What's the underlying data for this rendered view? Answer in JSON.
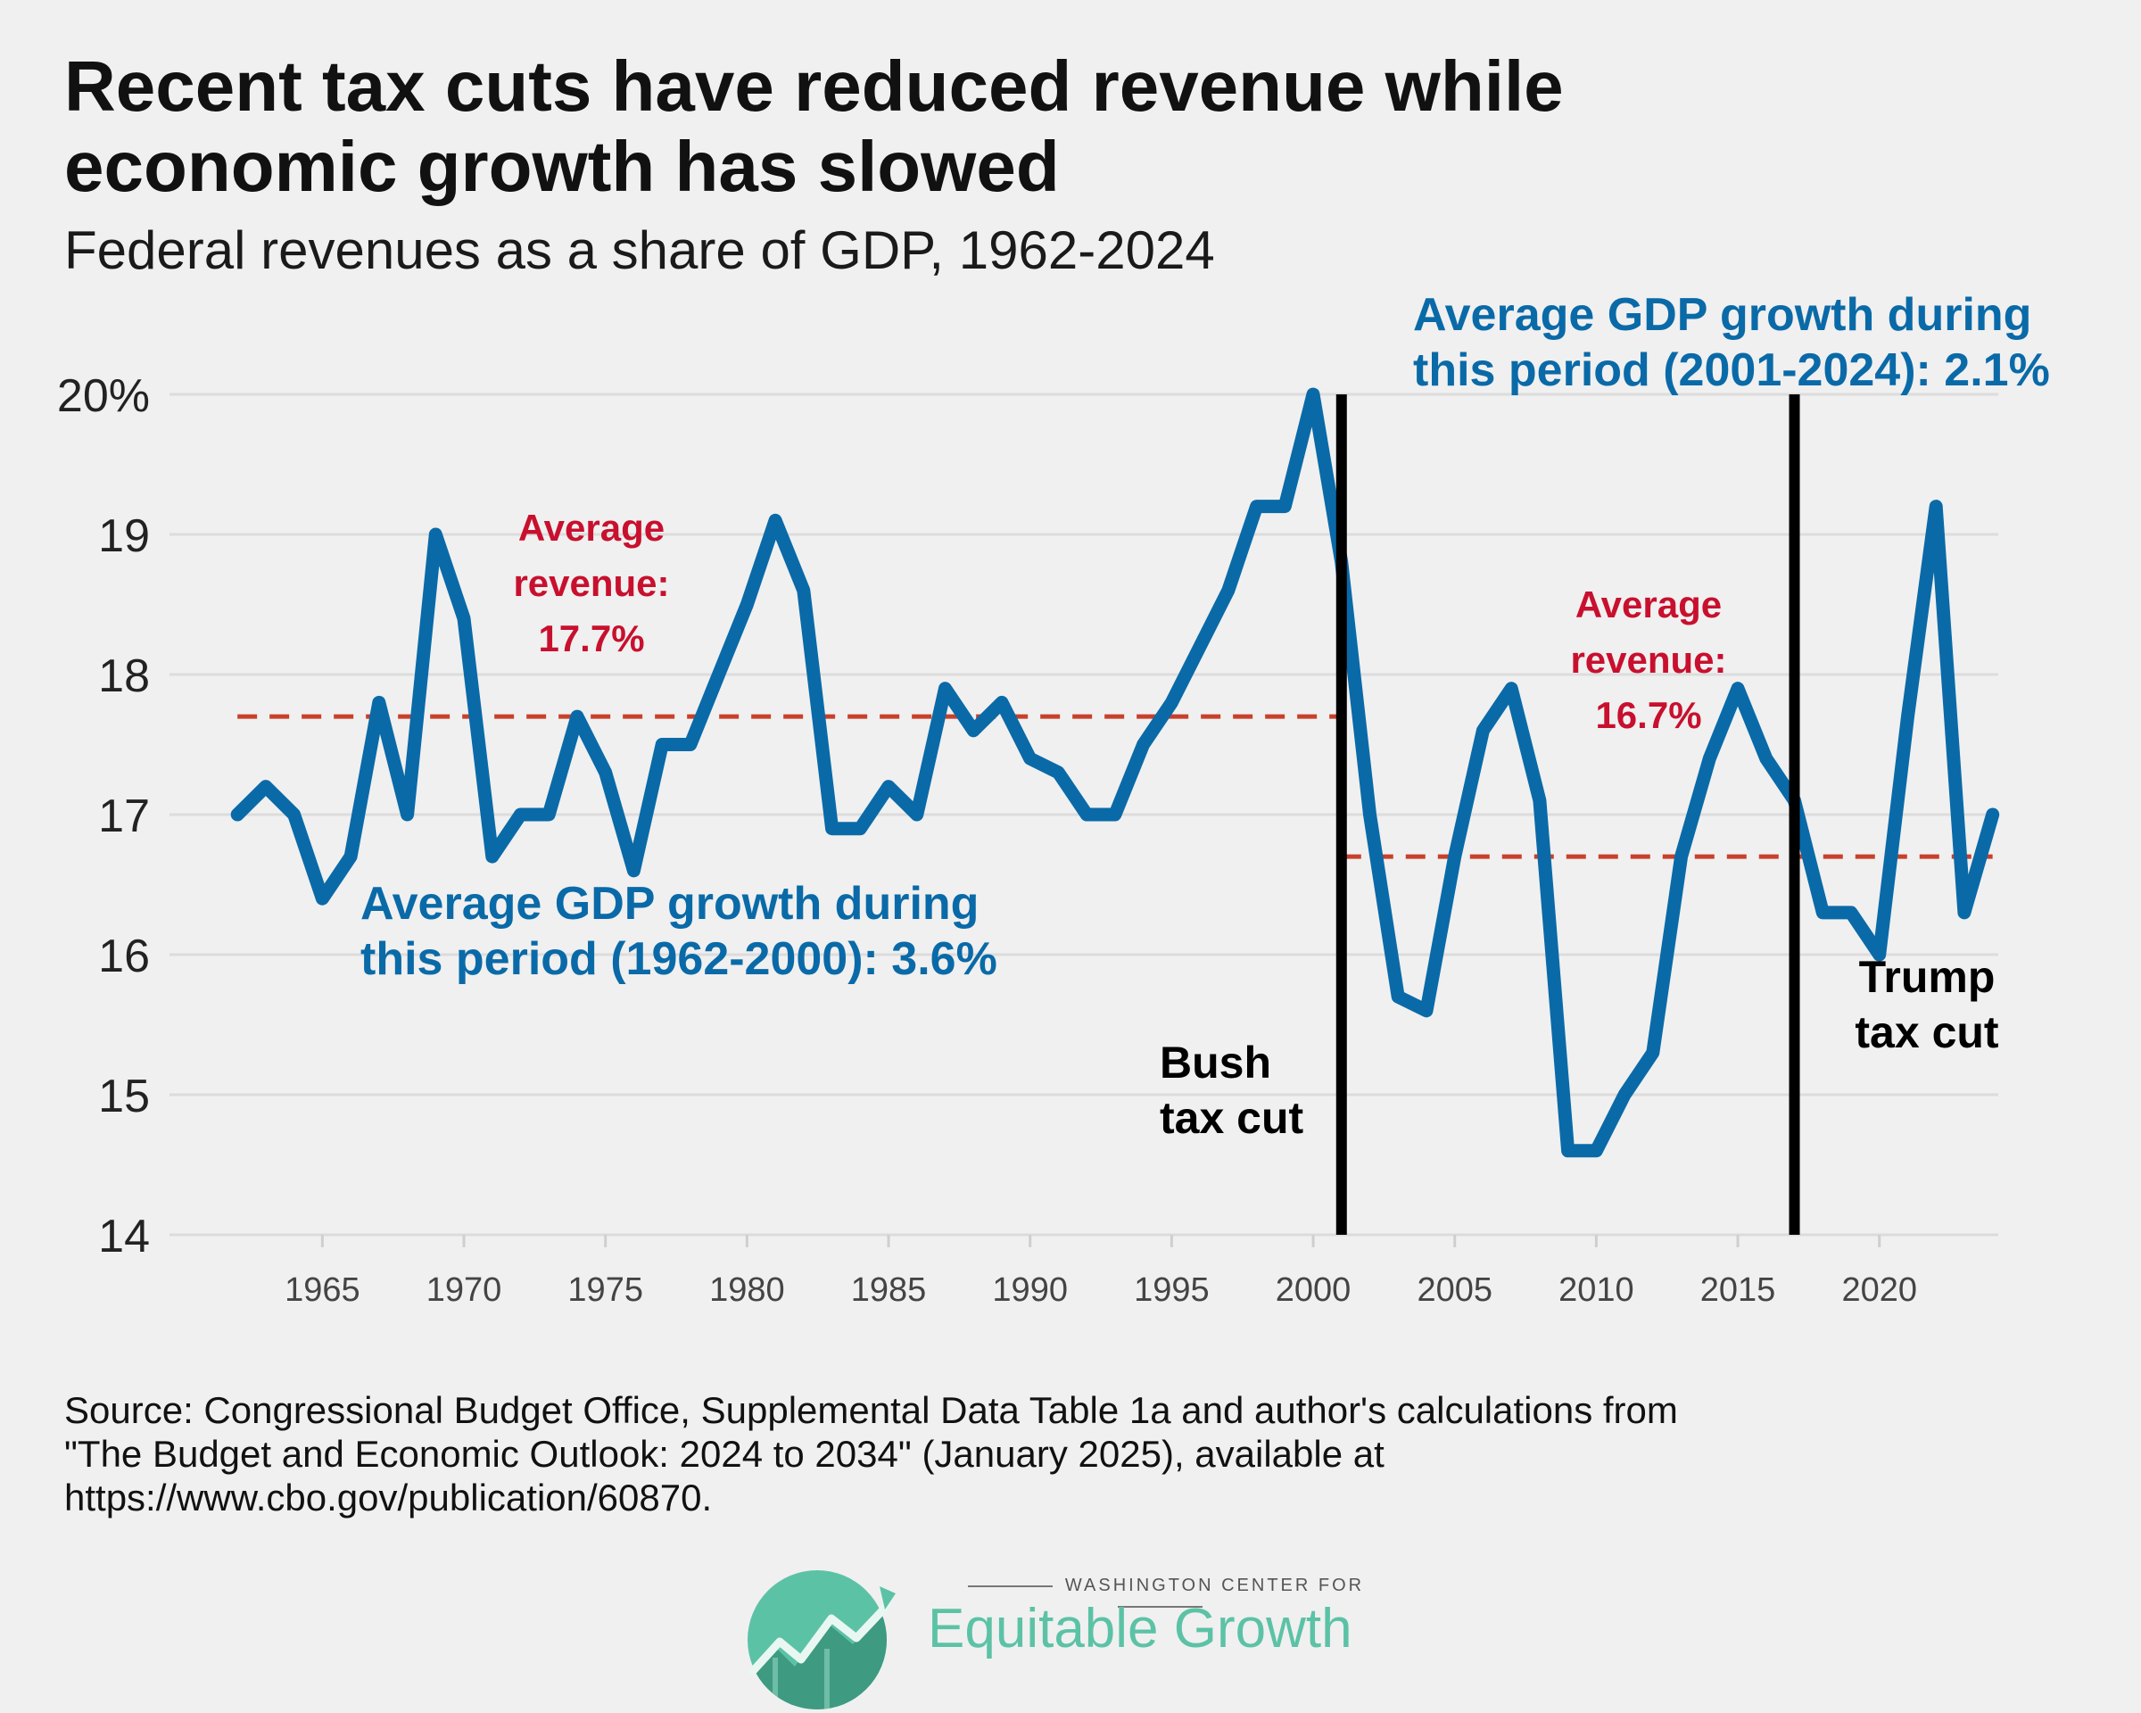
{
  "title_line1": "Recent tax cuts have reduced revenue while",
  "title_line2": "economic growth has slowed",
  "subtitle": "Federal revenues as a share of GDP, 1962-2024",
  "source": {
    "line1": "Source: Congressional Budget Office, Supplemental Data Table 1a and author's calculations from",
    "line2": "\"The Budget and Economic Outlook: 2024 to 2034\" (January 2025), available at",
    "line3": "https://www.cbo.gov/publication/60870."
  },
  "logo": {
    "small": "WASHINGTON CENTER FOR",
    "big": "Equitable Growth"
  },
  "chart_data": {
    "type": "line",
    "x": [
      1962,
      1963,
      1964,
      1965,
      1966,
      1967,
      1968,
      1969,
      1970,
      1971,
      1972,
      1973,
      1974,
      1975,
      1976,
      1977,
      1978,
      1979,
      1980,
      1981,
      1982,
      1983,
      1984,
      1985,
      1986,
      1987,
      1988,
      1989,
      1990,
      1991,
      1992,
      1993,
      1994,
      1995,
      1996,
      1997,
      1998,
      1999,
      2000,
      2001,
      2002,
      2003,
      2004,
      2005,
      2006,
      2007,
      2008,
      2009,
      2010,
      2011,
      2012,
      2013,
      2014,
      2015,
      2016,
      2017,
      2018,
      2019,
      2020,
      2021,
      2022,
      2023,
      2024
    ],
    "series": [
      {
        "values": [
          17.0,
          17.2,
          17.0,
          16.4,
          16.7,
          17.8,
          17.0,
          19.0,
          18.4,
          16.7,
          17.0,
          17.0,
          17.7,
          17.3,
          16.6,
          17.5,
          17.5,
          18.0,
          18.5,
          19.1,
          18.6,
          16.9,
          16.9,
          17.2,
          17.0,
          17.9,
          17.6,
          17.8,
          17.4,
          17.3,
          17.0,
          17.0,
          17.5,
          17.8,
          18.2,
          18.6,
          19.2,
          19.2,
          20.0,
          18.8,
          17.0,
          15.7,
          15.6,
          16.7,
          17.6,
          17.9,
          17.1,
          14.6,
          14.6,
          15.0,
          15.3,
          16.7,
          17.4,
          17.9,
          17.4,
          17.1,
          16.3,
          16.3,
          16.0,
          17.7,
          19.2,
          16.3,
          17.0
        ],
        "color": "#0a6aa8"
      }
    ],
    "xlim": [
      1959.6,
      2024.2
    ],
    "ylim": [
      14,
      20
    ],
    "yticks": [
      14,
      15,
      16,
      17,
      18,
      19,
      20
    ],
    "ytick_labels": [
      "14",
      "15",
      "16",
      "17",
      "18",
      "19",
      "20%"
    ],
    "xticks": [
      1965,
      1970,
      1975,
      1980,
      1985,
      1990,
      1995,
      2000,
      2005,
      2010,
      2015,
      2020
    ],
    "xtick_labels": [
      "1965",
      "1970",
      "1975",
      "1980",
      "1985",
      "1990",
      "1995",
      "2000",
      "2005",
      "2010",
      "2015",
      "2020"
    ],
    "grid": true,
    "reference_lines": [
      {
        "x_start": 1962,
        "x_end": 2001,
        "y": 17.7,
        "color": "#c8402b"
      },
      {
        "x_start": 2001,
        "x_end": 2024,
        "y": 16.7,
        "color": "#c8402b"
      }
    ],
    "vertical_lines": [
      {
        "x": 2001,
        "color": "#000000"
      },
      {
        "x": 2017,
        "color": "#000000"
      }
    ],
    "annotations": {
      "avg_rev_1_lines": [
        "Average",
        "revenue:",
        "17.7%"
      ],
      "avg_rev_2_lines": [
        "Average",
        "revenue:",
        "16.7%"
      ],
      "gdp_1_lines": [
        "Average GDP growth during",
        "this period (1962-2000): 3.6%"
      ],
      "gdp_2_lines": [
        "Average GDP growth during",
        "this period (2001-2024): 2.1%"
      ],
      "bush_lines": [
        "Bush",
        "tax cut"
      ],
      "trump_lines": [
        "Trump",
        "tax cut"
      ],
      "red_color": "#c8102e",
      "blue_color": "#0a6aa8"
    }
  }
}
